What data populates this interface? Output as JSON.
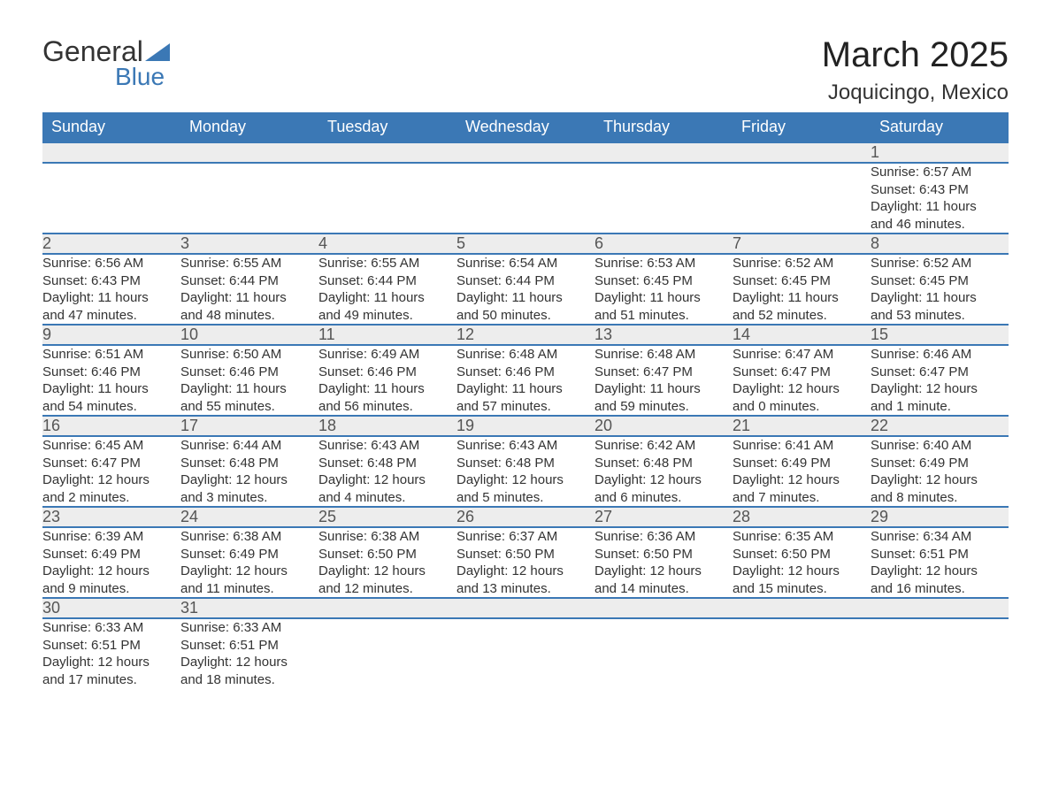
{
  "brand": {
    "name1": "General",
    "name2": "Blue",
    "accent": "#3b78b5"
  },
  "title": "March 2025",
  "location": "Joquicingo, Mexico",
  "colors": {
    "header_bg": "#3b78b5",
    "header_text": "#ffffff",
    "daynum_bg": "#ededed",
    "border": "#3b78b5",
    "text": "#333333",
    "background": "#ffffff"
  },
  "typography": {
    "title_fontsize": 40,
    "location_fontsize": 24,
    "header_fontsize": 18,
    "daynum_fontsize": 18,
    "detail_fontsize": 15
  },
  "day_headers": [
    "Sunday",
    "Monday",
    "Tuesday",
    "Wednesday",
    "Thursday",
    "Friday",
    "Saturday"
  ],
  "weeks": [
    [
      null,
      null,
      null,
      null,
      null,
      null,
      {
        "n": "1",
        "sunrise": "Sunrise: 6:57 AM",
        "sunset": "Sunset: 6:43 PM",
        "d1": "Daylight: 11 hours",
        "d2": "and 46 minutes."
      }
    ],
    [
      {
        "n": "2",
        "sunrise": "Sunrise: 6:56 AM",
        "sunset": "Sunset: 6:43 PM",
        "d1": "Daylight: 11 hours",
        "d2": "and 47 minutes."
      },
      {
        "n": "3",
        "sunrise": "Sunrise: 6:55 AM",
        "sunset": "Sunset: 6:44 PM",
        "d1": "Daylight: 11 hours",
        "d2": "and 48 minutes."
      },
      {
        "n": "4",
        "sunrise": "Sunrise: 6:55 AM",
        "sunset": "Sunset: 6:44 PM",
        "d1": "Daylight: 11 hours",
        "d2": "and 49 minutes."
      },
      {
        "n": "5",
        "sunrise": "Sunrise: 6:54 AM",
        "sunset": "Sunset: 6:44 PM",
        "d1": "Daylight: 11 hours",
        "d2": "and 50 minutes."
      },
      {
        "n": "6",
        "sunrise": "Sunrise: 6:53 AM",
        "sunset": "Sunset: 6:45 PM",
        "d1": "Daylight: 11 hours",
        "d2": "and 51 minutes."
      },
      {
        "n": "7",
        "sunrise": "Sunrise: 6:52 AM",
        "sunset": "Sunset: 6:45 PM",
        "d1": "Daylight: 11 hours",
        "d2": "and 52 minutes."
      },
      {
        "n": "8",
        "sunrise": "Sunrise: 6:52 AM",
        "sunset": "Sunset: 6:45 PM",
        "d1": "Daylight: 11 hours",
        "d2": "and 53 minutes."
      }
    ],
    [
      {
        "n": "9",
        "sunrise": "Sunrise: 6:51 AM",
        "sunset": "Sunset: 6:46 PM",
        "d1": "Daylight: 11 hours",
        "d2": "and 54 minutes."
      },
      {
        "n": "10",
        "sunrise": "Sunrise: 6:50 AM",
        "sunset": "Sunset: 6:46 PM",
        "d1": "Daylight: 11 hours",
        "d2": "and 55 minutes."
      },
      {
        "n": "11",
        "sunrise": "Sunrise: 6:49 AM",
        "sunset": "Sunset: 6:46 PM",
        "d1": "Daylight: 11 hours",
        "d2": "and 56 minutes."
      },
      {
        "n": "12",
        "sunrise": "Sunrise: 6:48 AM",
        "sunset": "Sunset: 6:46 PM",
        "d1": "Daylight: 11 hours",
        "d2": "and 57 minutes."
      },
      {
        "n": "13",
        "sunrise": "Sunrise: 6:48 AM",
        "sunset": "Sunset: 6:47 PM",
        "d1": "Daylight: 11 hours",
        "d2": "and 59 minutes."
      },
      {
        "n": "14",
        "sunrise": "Sunrise: 6:47 AM",
        "sunset": "Sunset: 6:47 PM",
        "d1": "Daylight: 12 hours",
        "d2": "and 0 minutes."
      },
      {
        "n": "15",
        "sunrise": "Sunrise: 6:46 AM",
        "sunset": "Sunset: 6:47 PM",
        "d1": "Daylight: 12 hours",
        "d2": "and 1 minute."
      }
    ],
    [
      {
        "n": "16",
        "sunrise": "Sunrise: 6:45 AM",
        "sunset": "Sunset: 6:47 PM",
        "d1": "Daylight: 12 hours",
        "d2": "and 2 minutes."
      },
      {
        "n": "17",
        "sunrise": "Sunrise: 6:44 AM",
        "sunset": "Sunset: 6:48 PM",
        "d1": "Daylight: 12 hours",
        "d2": "and 3 minutes."
      },
      {
        "n": "18",
        "sunrise": "Sunrise: 6:43 AM",
        "sunset": "Sunset: 6:48 PM",
        "d1": "Daylight: 12 hours",
        "d2": "and 4 minutes."
      },
      {
        "n": "19",
        "sunrise": "Sunrise: 6:43 AM",
        "sunset": "Sunset: 6:48 PM",
        "d1": "Daylight: 12 hours",
        "d2": "and 5 minutes."
      },
      {
        "n": "20",
        "sunrise": "Sunrise: 6:42 AM",
        "sunset": "Sunset: 6:48 PM",
        "d1": "Daylight: 12 hours",
        "d2": "and 6 minutes."
      },
      {
        "n": "21",
        "sunrise": "Sunrise: 6:41 AM",
        "sunset": "Sunset: 6:49 PM",
        "d1": "Daylight: 12 hours",
        "d2": "and 7 minutes."
      },
      {
        "n": "22",
        "sunrise": "Sunrise: 6:40 AM",
        "sunset": "Sunset: 6:49 PM",
        "d1": "Daylight: 12 hours",
        "d2": "and 8 minutes."
      }
    ],
    [
      {
        "n": "23",
        "sunrise": "Sunrise: 6:39 AM",
        "sunset": "Sunset: 6:49 PM",
        "d1": "Daylight: 12 hours",
        "d2": "and 9 minutes."
      },
      {
        "n": "24",
        "sunrise": "Sunrise: 6:38 AM",
        "sunset": "Sunset: 6:49 PM",
        "d1": "Daylight: 12 hours",
        "d2": "and 11 minutes."
      },
      {
        "n": "25",
        "sunrise": "Sunrise: 6:38 AM",
        "sunset": "Sunset: 6:50 PM",
        "d1": "Daylight: 12 hours",
        "d2": "and 12 minutes."
      },
      {
        "n": "26",
        "sunrise": "Sunrise: 6:37 AM",
        "sunset": "Sunset: 6:50 PM",
        "d1": "Daylight: 12 hours",
        "d2": "and 13 minutes."
      },
      {
        "n": "27",
        "sunrise": "Sunrise: 6:36 AM",
        "sunset": "Sunset: 6:50 PM",
        "d1": "Daylight: 12 hours",
        "d2": "and 14 minutes."
      },
      {
        "n": "28",
        "sunrise": "Sunrise: 6:35 AM",
        "sunset": "Sunset: 6:50 PM",
        "d1": "Daylight: 12 hours",
        "d2": "and 15 minutes."
      },
      {
        "n": "29",
        "sunrise": "Sunrise: 6:34 AM",
        "sunset": "Sunset: 6:51 PM",
        "d1": "Daylight: 12 hours",
        "d2": "and 16 minutes."
      }
    ],
    [
      {
        "n": "30",
        "sunrise": "Sunrise: 6:33 AM",
        "sunset": "Sunset: 6:51 PM",
        "d1": "Daylight: 12 hours",
        "d2": "and 17 minutes."
      },
      {
        "n": "31",
        "sunrise": "Sunrise: 6:33 AM",
        "sunset": "Sunset: 6:51 PM",
        "d1": "Daylight: 12 hours",
        "d2": "and 18 minutes."
      },
      null,
      null,
      null,
      null,
      null
    ]
  ]
}
